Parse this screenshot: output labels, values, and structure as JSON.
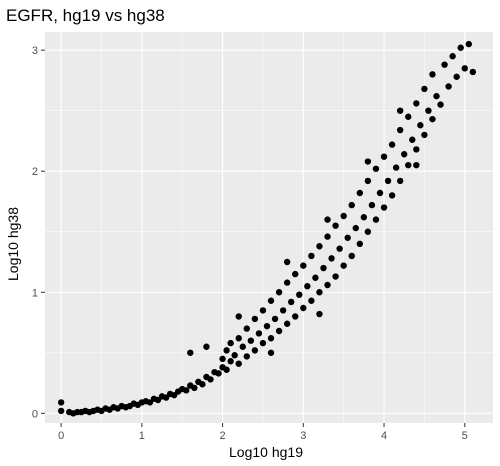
{
  "chart_data": {
    "type": "scatter",
    "title": "EGFR, hg19 vs hg38",
    "xlabel": "Log10 hg19",
    "ylabel": "Log10 hg38",
    "xlim": [
      -0.2,
      5.35
    ],
    "ylim": [
      -0.08,
      3.15
    ],
    "x_ticks": [
      0,
      1,
      2,
      3,
      4,
      5
    ],
    "y_ticks": [
      0,
      1,
      2,
      3
    ],
    "grid": true,
    "legend": "none",
    "colors": {
      "panel": "#ebebeb",
      "grid": "#ffffff",
      "point": "#000000"
    },
    "series": [
      {
        "points": [
          [
            0.0,
            0.02
          ],
          [
            0.0,
            0.09
          ],
          [
            0.1,
            0.01
          ],
          [
            0.15,
            0.0
          ],
          [
            0.2,
            0.01
          ],
          [
            0.25,
            0.01
          ],
          [
            0.3,
            0.02
          ],
          [
            0.35,
            0.01
          ],
          [
            0.4,
            0.02
          ],
          [
            0.45,
            0.03
          ],
          [
            0.5,
            0.02
          ],
          [
            0.55,
            0.04
          ],
          [
            0.6,
            0.03
          ],
          [
            0.65,
            0.05
          ],
          [
            0.7,
            0.04
          ],
          [
            0.75,
            0.06
          ],
          [
            0.8,
            0.05
          ],
          [
            0.85,
            0.06
          ],
          [
            0.9,
            0.08
          ],
          [
            0.95,
            0.07
          ],
          [
            1.0,
            0.09
          ],
          [
            1.05,
            0.1
          ],
          [
            1.1,
            0.09
          ],
          [
            1.15,
            0.12
          ],
          [
            1.2,
            0.11
          ],
          [
            1.25,
            0.14
          ],
          [
            1.3,
            0.13
          ],
          [
            1.35,
            0.16
          ],
          [
            1.4,
            0.15
          ],
          [
            1.45,
            0.18
          ],
          [
            1.5,
            0.2
          ],
          [
            1.55,
            0.19
          ],
          [
            1.6,
            0.23
          ],
          [
            1.65,
            0.21
          ],
          [
            1.7,
            0.26
          ],
          [
            1.75,
            0.24
          ],
          [
            1.8,
            0.3
          ],
          [
            1.85,
            0.28
          ],
          [
            1.9,
            0.34
          ],
          [
            1.95,
            0.33
          ],
          [
            2.0,
            0.38
          ],
          [
            2.0,
            0.45
          ],
          [
            2.05,
            0.36
          ],
          [
            2.05,
            0.52
          ],
          [
            2.1,
            0.43
          ],
          [
            2.1,
            0.58
          ],
          [
            2.15,
            0.48
          ],
          [
            2.2,
            0.41
          ],
          [
            2.2,
            0.62
          ],
          [
            2.25,
            0.55
          ],
          [
            2.3,
            0.47
          ],
          [
            2.3,
            0.7
          ],
          [
            2.35,
            0.6
          ],
          [
            2.4,
            0.52
          ],
          [
            2.4,
            0.78
          ],
          [
            2.45,
            0.66
          ],
          [
            2.5,
            0.58
          ],
          [
            2.5,
            0.85
          ],
          [
            2.55,
            0.72
          ],
          [
            2.6,
            0.62
          ],
          [
            2.6,
            0.93
          ],
          [
            2.65,
            0.78
          ],
          [
            2.7,
            0.68
          ],
          [
            2.7,
            1.0
          ],
          [
            2.75,
            0.85
          ],
          [
            2.8,
            0.74
          ],
          [
            2.8,
            1.08
          ],
          [
            2.85,
            0.92
          ],
          [
            2.9,
            0.8
          ],
          [
            2.9,
            1.15
          ],
          [
            2.95,
            0.98
          ],
          [
            3.0,
            0.87
          ],
          [
            3.0,
            1.22
          ],
          [
            3.05,
            1.05
          ],
          [
            3.1,
            0.93
          ],
          [
            3.1,
            1.3
          ],
          [
            3.15,
            1.12
          ],
          [
            3.2,
            1.0
          ],
          [
            3.2,
            1.38
          ],
          [
            3.25,
            1.2
          ],
          [
            3.3,
            1.06
          ],
          [
            3.3,
            1.46
          ],
          [
            3.35,
            1.28
          ],
          [
            3.4,
            1.13
          ],
          [
            3.4,
            1.55
          ],
          [
            3.45,
            1.36
          ],
          [
            3.5,
            1.22
          ],
          [
            3.5,
            1.63
          ],
          [
            3.55,
            1.45
          ],
          [
            3.6,
            1.3
          ],
          [
            3.6,
            1.72
          ],
          [
            3.65,
            1.53
          ],
          [
            3.7,
            1.4
          ],
          [
            3.7,
            1.82
          ],
          [
            3.75,
            1.62
          ],
          [
            3.8,
            1.5
          ],
          [
            3.8,
            1.92
          ],
          [
            3.85,
            1.72
          ],
          [
            3.9,
            1.6
          ],
          [
            3.9,
            2.02
          ],
          [
            3.95,
            1.82
          ],
          [
            4.0,
            1.7
          ],
          [
            4.0,
            2.12
          ],
          [
            4.05,
            1.92
          ],
          [
            4.1,
            1.8
          ],
          [
            4.1,
            2.22
          ],
          [
            4.15,
            2.03
          ],
          [
            4.2,
            1.92
          ],
          [
            4.2,
            2.34
          ],
          [
            4.25,
            2.14
          ],
          [
            4.3,
            2.05
          ],
          [
            4.3,
            2.45
          ],
          [
            4.35,
            2.26
          ],
          [
            4.4,
            2.18
          ],
          [
            4.4,
            2.56
          ],
          [
            4.45,
            2.38
          ],
          [
            4.5,
            2.3
          ],
          [
            4.5,
            2.68
          ],
          [
            4.55,
            2.5
          ],
          [
            4.6,
            2.43
          ],
          [
            4.6,
            2.8
          ],
          [
            4.65,
            2.62
          ],
          [
            4.7,
            2.55
          ],
          [
            4.75,
            2.88
          ],
          [
            4.8,
            2.7
          ],
          [
            4.85,
            2.95
          ],
          [
            4.9,
            2.78
          ],
          [
            4.95,
            3.02
          ],
          [
            5.0,
            2.85
          ],
          [
            5.05,
            3.05
          ],
          [
            5.1,
            2.82
          ],
          [
            1.6,
            0.5
          ],
          [
            1.8,
            0.55
          ],
          [
            2.2,
            0.8
          ],
          [
            2.8,
            1.25
          ],
          [
            3.3,
            1.6
          ],
          [
            3.8,
            2.08
          ],
          [
            4.4,
            2.05
          ],
          [
            3.2,
            0.82
          ],
          [
            2.6,
            0.5
          ],
          [
            4.2,
            2.5
          ]
        ]
      }
    ]
  }
}
